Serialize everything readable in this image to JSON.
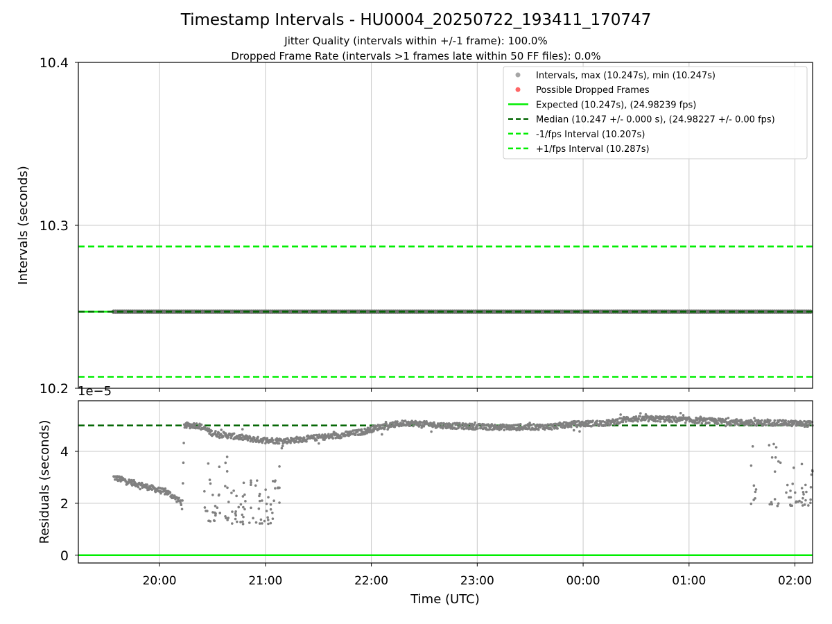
{
  "title": "Timestamp Intervals - HU0004_20250722_193411_170747",
  "subtitle_lines": [
    "Jitter Quality (intervals within +/-1 frame): 100.0%",
    "Dropped Frame Rate (intervals >1 frames late within 50 FF files): 0.0%"
  ],
  "colors": {
    "points": "#808080",
    "dropped": "#ff4d4d",
    "expected": "#00ee00",
    "median": "#006400",
    "bounds": "#00ee00",
    "grid": "#c8c8c8"
  },
  "chart_data": [
    {
      "type": "scatter",
      "ylabel": "Intervals (seconds)",
      "ylim": [
        10.2,
        10.4
      ],
      "yticks": [
        "10.2",
        "10.3",
        "10.4"
      ],
      "x_range": [
        "19:14",
        "02:10"
      ],
      "x_time_start": "19:34",
      "x_time_end": "02:10",
      "interval_value": 10.247,
      "legend_placement": "top-right",
      "legend": [
        {
          "label": "Intervals, max (10.247s), min (10.247s)",
          "kind": "dot",
          "color": "#a6a6a6"
        },
        {
          "label": "Possible Dropped Frames",
          "kind": "dot",
          "color": "#ff6666"
        },
        {
          "label": "Expected (10.247s), (24.98239 fps)",
          "kind": "solid",
          "color": "#00ee00"
        },
        {
          "label": "Median (10.247 +/- 0.000 s), (24.98227 +/- 0.00 fps)",
          "kind": "dashed",
          "color": "#006400"
        },
        {
          "label": "-1/fps Interval (10.207s)",
          "kind": "dashed",
          "color": "#00ee00"
        },
        {
          "label": "+1/fps Interval (10.287s)",
          "kind": "dashed",
          "color": "#00ee00"
        }
      ],
      "hlines": {
        "expected": 10.247,
        "median": 10.247,
        "minus": 10.207,
        "plus": 10.287
      }
    },
    {
      "type": "scatter",
      "xlabel": "Time (UTC)",
      "ylabel": "Residuals (seconds)",
      "ylim": [
        -0.3,
        5.95
      ],
      "y_multiplier": "1e−5",
      "yticks": [
        "0",
        "2",
        "4"
      ],
      "xticks": [
        "20:00",
        "21:00",
        "22:00",
        "23:00",
        "00:00",
        "01:00",
        "02:00"
      ],
      "x_range": [
        "19:14",
        "02:10"
      ],
      "hlines": {
        "expected": 0,
        "median": 5.0
      },
      "trend": [
        [
          "19:34",
          3.0
        ],
        [
          "20:05",
          2.4
        ],
        [
          "20:13",
          2.0
        ],
        [
          "20:14",
          5.0
        ],
        [
          "20:22",
          5.0
        ],
        [
          "20:30",
          4.7
        ],
        [
          "20:40",
          4.6
        ],
        [
          "20:55",
          4.45
        ],
        [
          "21:10",
          4.4
        ],
        [
          "21:25",
          4.5
        ],
        [
          "21:40",
          4.6
        ],
        [
          "21:55",
          4.75
        ],
        [
          "22:05",
          4.95
        ],
        [
          "22:20",
          5.1
        ],
        [
          "22:40",
          5.0
        ],
        [
          "23:00",
          4.95
        ],
        [
          "23:20",
          4.92
        ],
        [
          "23:40",
          4.95
        ],
        [
          "23:55",
          5.05
        ],
        [
          "00:15",
          5.1
        ],
        [
          "00:25",
          5.25
        ],
        [
          "00:45",
          5.25
        ],
        [
          "01:00",
          5.2
        ],
        [
          "01:20",
          5.15
        ],
        [
          "01:35",
          5.1
        ],
        [
          "01:50",
          5.1
        ],
        [
          "02:10",
          5.05
        ]
      ],
      "outlier_clusters": [
        {
          "from": "20:25",
          "to": "20:40",
          "lo": 1.3,
          "hi": 3.8
        },
        {
          "from": "20:40",
          "to": "21:05",
          "lo": 1.2,
          "hi": 3.0
        },
        {
          "from": "21:05",
          "to": "21:08",
          "lo": 2.0,
          "hi": 3.6
        },
        {
          "from": "01:35",
          "to": "01:38",
          "lo": 1.9,
          "hi": 4.2
        },
        {
          "from": "01:45",
          "to": "01:52",
          "lo": 1.9,
          "hi": 4.3
        },
        {
          "from": "01:55",
          "to": "02:10",
          "lo": 1.9,
          "hi": 3.6
        }
      ]
    }
  ]
}
